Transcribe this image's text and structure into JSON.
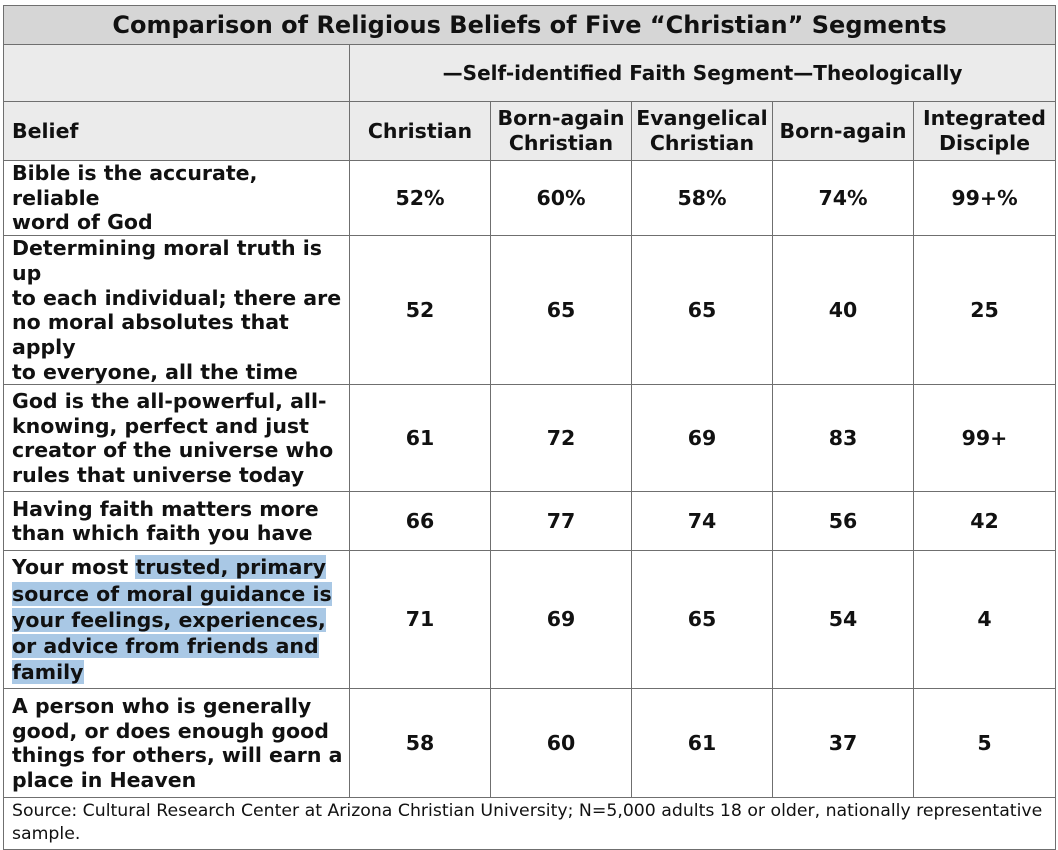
{
  "table": {
    "title": "Comparison of Religious Beliefs of Five “Christian” Segments",
    "group_header": "—Self-identified Faith Segment—Theologically",
    "belief_header": "Belief",
    "columns": [
      {
        "line1": "Christian",
        "line2": ""
      },
      {
        "line1": "Born-again",
        "line2": "Christian"
      },
      {
        "line1": "Evangelical",
        "line2": "Christian"
      },
      {
        "line1": "Born-again",
        "line2": ""
      },
      {
        "line1": "Integrated",
        "line2": "Disciple"
      }
    ],
    "rows": [
      {
        "belief_lines": [
          "Bible is the accurate, reliable",
          "word of God"
        ],
        "values": [
          "52%",
          "60%",
          "58%",
          "74%",
          "99+%"
        ]
      },
      {
        "belief_lines": [
          "Determining moral truth is up",
          "to each individual; there are",
          "no moral absolutes that apply",
          "to everyone, all the time"
        ],
        "values": [
          "52",
          "65",
          "65",
          "40",
          "25"
        ]
      },
      {
        "belief_lines": [
          "God is the all-powerful, all-",
          "knowing, perfect and just",
          "creator of the universe who",
          "rules that universe today"
        ],
        "values": [
          "61",
          "72",
          "69",
          "83",
          "99+"
        ]
      },
      {
        "belief_lines": [
          "Having faith matters more",
          "than which faith you have"
        ],
        "values": [
          "66",
          "77",
          "74",
          "56",
          "42"
        ]
      },
      {
        "belief_lines": [
          "Your most ",
          "trusted, primary",
          "source of moral guidance is",
          "your feelings, experiences,",
          "or advice from friends and",
          "family"
        ],
        "values": [
          "71",
          "69",
          "65",
          "54",
          "4"
        ]
      },
      {
        "belief_lines": [
          "A person who is generally",
          "good, or does enough good",
          "things for others, will earn a",
          "place in Heaven"
        ],
        "values": [
          "58",
          "60",
          "61",
          "37",
          "5"
        ]
      }
    ],
    "source": "Source: Cultural Research Center at Arizona Christian University; N=5,000 adults 18 or older, nationally representative sample."
  },
  "colors": {
    "title_bg": "#d6d6d6",
    "header_bg": "#ebebeb",
    "border": "#6f6f6f",
    "highlight": "#a9c8e5"
  }
}
